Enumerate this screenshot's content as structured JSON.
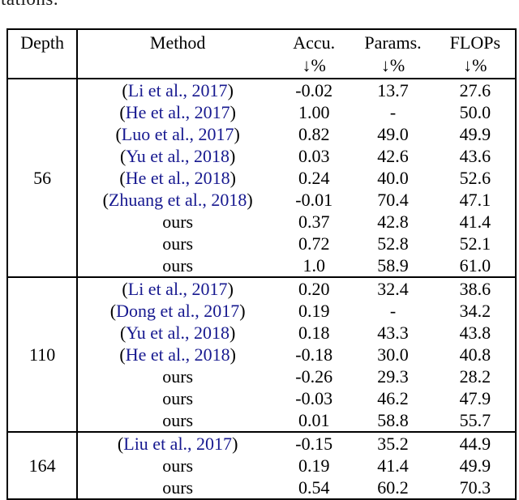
{
  "page": {
    "clipped_text": "tations."
  },
  "colors": {
    "text": "#000000",
    "citation_link": "#16188f",
    "border": "#000000"
  },
  "table": {
    "header": {
      "depth": "Depth",
      "method": "Method",
      "accu": "Accu.",
      "params": "Params.",
      "flops": "FLOPs",
      "unit_label": "↓%"
    },
    "groups": [
      {
        "depth": "56",
        "rows": [
          {
            "cite": true,
            "pre": "(",
            "link": "Li et al., 2017",
            "post": ")",
            "accu": "-0.02",
            "params": "13.7",
            "flops": "27.6"
          },
          {
            "cite": true,
            "pre": "(",
            "link": "He et al., 2017",
            "post": ")",
            "accu": "1.00",
            "params": "-",
            "flops": "50.0"
          },
          {
            "cite": true,
            "pre": "(",
            "link": "Luo et al., 2017",
            "post": ")",
            "accu": "0.82",
            "params": "49.0",
            "flops": "49.9"
          },
          {
            "cite": true,
            "pre": "(",
            "link": "Yu et al., 2018",
            "post": ")",
            "accu": "0.03",
            "params": "42.6",
            "flops": "43.6"
          },
          {
            "cite": true,
            "pre": "(",
            "link": "He et al., 2018",
            "post": ")",
            "accu": "0.24",
            "params": "40.0",
            "flops": "52.6"
          },
          {
            "cite": true,
            "pre": "(",
            "link": "Zhuang et al., 2018",
            "post": ")",
            "accu": "-0.01",
            "params": "70.4",
            "flops": "47.1"
          },
          {
            "cite": false,
            "method": "ours",
            "accu": "0.37",
            "params": "42.8",
            "flops": "41.4"
          },
          {
            "cite": false,
            "method": "ours",
            "accu": "0.72",
            "params": "52.8",
            "flops": "52.1"
          },
          {
            "cite": false,
            "method": "ours",
            "accu": "1.0",
            "params": "58.9",
            "flops": "61.0"
          }
        ]
      },
      {
        "depth": "110",
        "rows": [
          {
            "cite": true,
            "pre": "(",
            "link": "Li et al., 2017",
            "post": ")",
            "accu": "0.20",
            "params": "32.4",
            "flops": "38.6"
          },
          {
            "cite": true,
            "pre": "(",
            "link": "Dong et al., 2017",
            "post": ")",
            "accu": "0.19",
            "params": "-",
            "flops": "34.2"
          },
          {
            "cite": true,
            "pre": "(",
            "link": "Yu et al., 2018",
            "post": ")",
            "accu": "0.18",
            "params": "43.3",
            "flops": "43.8"
          },
          {
            "cite": true,
            "pre": "(",
            "link": "He et al., 2018",
            "post": ")",
            "accu": "-0.18",
            "params": "30.0",
            "flops": "40.8"
          },
          {
            "cite": false,
            "method": "ours",
            "accu": "-0.26",
            "params": "29.3",
            "flops": "28.2"
          },
          {
            "cite": false,
            "method": "ours",
            "accu": "-0.03",
            "params": "46.2",
            "flops": "47.9"
          },
          {
            "cite": false,
            "method": "ours",
            "accu": "0.01",
            "params": "58.8",
            "flops": "55.7"
          }
        ]
      },
      {
        "depth": "164",
        "rows": [
          {
            "cite": true,
            "pre": "(",
            "link": "Liu et al., 2017",
            "post": ")",
            "accu": "-0.15",
            "params": "35.2",
            "flops": "44.9"
          },
          {
            "cite": false,
            "method": "ours",
            "accu": "0.19",
            "params": "41.4",
            "flops": "49.9"
          },
          {
            "cite": false,
            "method": "ours",
            "accu": "0.54",
            "params": "60.2",
            "flops": "70.3"
          }
        ]
      }
    ]
  }
}
